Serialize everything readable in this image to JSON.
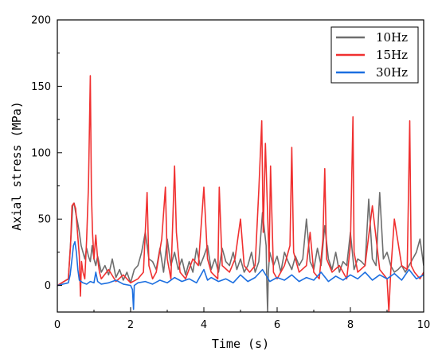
{
  "chart_data": {
    "type": "line",
    "title": "",
    "xlabel": "Time (s)",
    "ylabel": "Axial stress (MPa)",
    "xlim": [
      0,
      10
    ],
    "ylim": [
      -20,
      200
    ],
    "xticks": [
      0,
      2,
      4,
      6,
      8,
      10
    ],
    "yticks": [
      0,
      50,
      100,
      150,
      200
    ],
    "grid": false,
    "legend_position": "top-right",
    "series": [
      {
        "name": "10Hz",
        "color": "#6e6e6e",
        "x": [
          0,
          0.3,
          0.38,
          0.42,
          0.46,
          0.5,
          0.55,
          0.6,
          0.65,
          0.7,
          0.75,
          0.8,
          0.85,
          0.9,
          0.95,
          1.0,
          1.05,
          1.1,
          1.2,
          1.3,
          1.4,
          1.5,
          1.6,
          1.7,
          1.8,
          1.9,
          2.0,
          2.1,
          2.2,
          2.3,
          2.4,
          2.5,
          2.6,
          2.7,
          2.8,
          2.9,
          3.0,
          3.1,
          3.2,
          3.3,
          3.4,
          3.5,
          3.6,
          3.7,
          3.8,
          3.9,
          4.0,
          4.1,
          4.2,
          4.3,
          4.4,
          4.5,
          4.6,
          4.7,
          4.8,
          4.9,
          5.0,
          5.1,
          5.2,
          5.3,
          5.4,
          5.5,
          5.6,
          5.7,
          5.72,
          5.74,
          5.76,
          5.8,
          5.9,
          6.0,
          6.1,
          6.2,
          6.3,
          6.4,
          6.5,
          6.6,
          6.7,
          6.8,
          6.9,
          7.0,
          7.1,
          7.2,
          7.3,
          7.4,
          7.5,
          7.6,
          7.7,
          7.8,
          7.9,
          8.0,
          8.1,
          8.2,
          8.3,
          8.4,
          8.5,
          8.6,
          8.7,
          8.8,
          8.9,
          9.0,
          9.1,
          9.2,
          9.3,
          9.4,
          9.5,
          9.6,
          9.7,
          9.8,
          9.9,
          10.0
        ],
        "y": [
          0,
          5,
          40,
          60,
          62,
          55,
          48,
          40,
          30,
          25,
          20,
          28,
          22,
          18,
          30,
          20,
          15,
          22,
          10,
          15,
          8,
          20,
          6,
          12,
          4,
          10,
          2,
          12,
          15,
          25,
          40,
          20,
          18,
          12,
          28,
          10,
          35,
          15,
          25,
          12,
          20,
          8,
          18,
          10,
          28,
          15,
          22,
          30,
          12,
          20,
          10,
          28,
          18,
          15,
          25,
          12,
          20,
          10,
          15,
          25,
          10,
          18,
          55,
          30,
          0,
          -20,
          10,
          25,
          15,
          22,
          10,
          25,
          18,
          12,
          22,
          15,
          20,
          50,
          18,
          12,
          28,
          15,
          45,
          20,
          12,
          25,
          10,
          18,
          15,
          40,
          12,
          20,
          18,
          15,
          65,
          20,
          15,
          70,
          20,
          25,
          15,
          10,
          12,
          15,
          10,
          15,
          20,
          25,
          35,
          15
        ]
      },
      {
        "name": "15Hz",
        "color": "#f03030",
        "x": [
          0,
          0.3,
          0.36,
          0.4,
          0.45,
          0.5,
          0.55,
          0.6,
          0.63,
          0.66,
          0.7,
          0.75,
          0.8,
          0.85,
          0.9,
          0.93,
          0.96,
          1.0,
          1.05,
          1.1,
          1.15,
          1.2,
          1.4,
          1.6,
          1.8,
          2.0,
          2.2,
          2.35,
          2.45,
          2.5,
          2.6,
          2.7,
          2.85,
          2.95,
          3.0,
          3.1,
          3.2,
          3.25,
          3.35,
          3.5,
          3.7,
          3.85,
          4.0,
          4.1,
          4.2,
          4.38,
          4.42,
          4.5,
          4.7,
          4.85,
          5.0,
          5.1,
          5.25,
          5.4,
          5.5,
          5.58,
          5.62,
          5.68,
          5.78,
          5.82,
          5.9,
          6.0,
          6.2,
          6.35,
          6.4,
          6.45,
          6.6,
          6.8,
          6.9,
          7.0,
          7.15,
          7.25,
          7.3,
          7.35,
          7.5,
          7.7,
          7.9,
          8.0,
          8.07,
          8.1,
          8.2,
          8.4,
          8.6,
          8.8,
          9.0,
          9.05,
          9.1,
          9.2,
          9.4,
          9.55,
          9.62,
          9.66,
          9.75,
          9.9,
          10.0
        ],
        "y": [
          0,
          5,
          30,
          60,
          62,
          58,
          40,
          22,
          -8,
          18,
          10,
          5,
          35,
          75,
          158,
          70,
          40,
          20,
          38,
          20,
          10,
          5,
          12,
          3,
          8,
          2,
          5,
          10,
          70,
          15,
          5,
          10,
          35,
          74,
          20,
          5,
          90,
          40,
          10,
          5,
          20,
          15,
          74,
          20,
          10,
          5,
          74,
          15,
          10,
          20,
          50,
          15,
          10,
          15,
          72,
          124,
          40,
          107,
          18,
          90,
          10,
          5,
          15,
          30,
          104,
          25,
          10,
          15,
          40,
          10,
          5,
          35,
          88,
          20,
          10,
          15,
          5,
          30,
          127,
          25,
          10,
          15,
          60,
          12,
          5,
          -20,
          10,
          50,
          15,
          12,
          124,
          15,
          10,
          5,
          10
        ]
      },
      {
        "name": "30Hz",
        "color": "#1c6fe0",
        "x": [
          0,
          0.3,
          0.35,
          0.4,
          0.44,
          0.48,
          0.52,
          0.56,
          0.6,
          0.7,
          0.8,
          0.9,
          1.0,
          1.05,
          1.1,
          1.2,
          1.4,
          1.6,
          1.8,
          2.0,
          2.05,
          2.08,
          2.1,
          2.2,
          2.4,
          2.6,
          2.8,
          3.0,
          3.2,
          3.4,
          3.6,
          3.8,
          4.0,
          4.1,
          4.2,
          4.4,
          4.6,
          4.8,
          5.0,
          5.2,
          5.4,
          5.6,
          5.8,
          6.0,
          6.2,
          6.4,
          6.6,
          6.8,
          7.0,
          7.2,
          7.4,
          7.6,
          7.8,
          8.0,
          8.2,
          8.4,
          8.6,
          8.8,
          9.0,
          9.2,
          9.4,
          9.6,
          9.8,
          10.0
        ],
        "y": [
          0,
          2,
          8,
          20,
          30,
          33,
          25,
          12,
          4,
          2,
          1,
          3,
          2,
          10,
          3,
          1,
          2,
          4,
          1,
          0,
          -3,
          -18,
          0,
          2,
          3,
          1,
          4,
          2,
          6,
          3,
          5,
          2,
          12,
          4,
          6,
          3,
          5,
          2,
          8,
          3,
          6,
          12,
          3,
          6,
          4,
          8,
          3,
          6,
          4,
          10,
          3,
          7,
          4,
          8,
          5,
          10,
          4,
          8,
          5,
          9,
          4,
          12,
          5,
          8
        ]
      }
    ]
  }
}
